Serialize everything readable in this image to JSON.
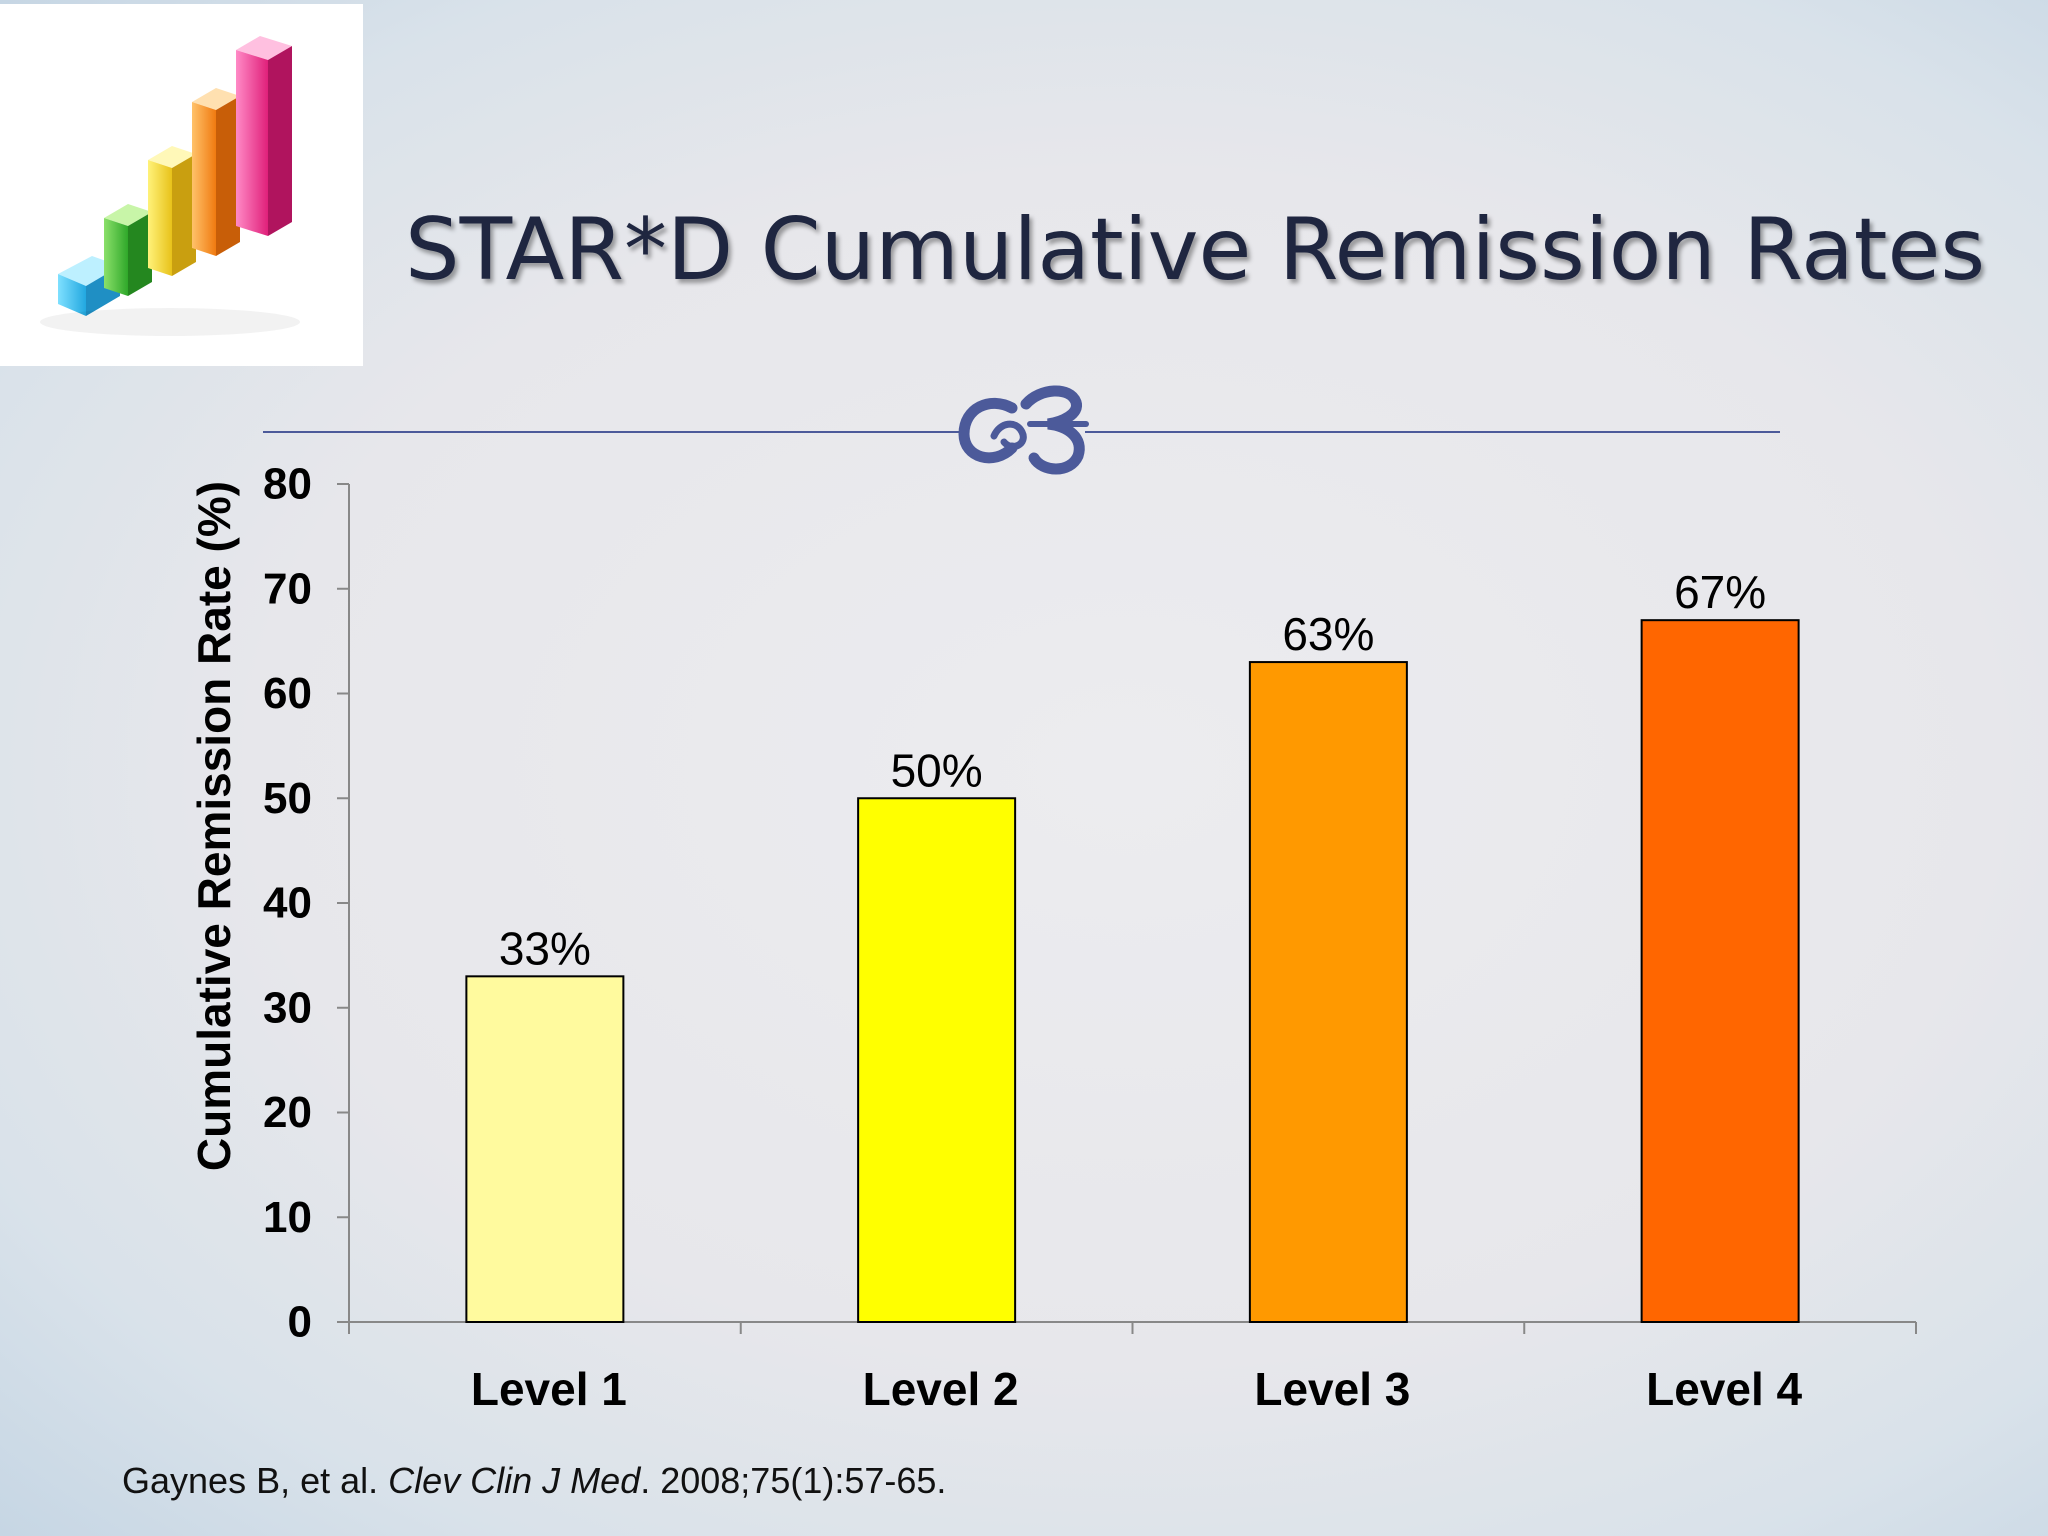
{
  "slide": {
    "title": "STAR*D Cumulative Remission Rates",
    "citation": {
      "authors": "Gaynes B, et al. ",
      "journal": "Clev Clin J Med",
      "details": ". 2008;75(1):57-65."
    }
  },
  "logo": {
    "icon": "bar-chart-graphic"
  },
  "decor": {
    "icon": "flourish-ornament",
    "color": "#4c5a9a"
  },
  "chart_data": {
    "type": "bar",
    "categories": [
      "Level 1",
      "Level 2",
      "Level 3",
      "Level 4"
    ],
    "values": [
      33,
      50,
      63,
      67
    ],
    "data_labels": [
      "33%",
      "50%",
      "63%",
      "67%"
    ],
    "colors": [
      "#fffa9e",
      "#ffff00",
      "#ff9900",
      "#ff6600"
    ],
    "title": "",
    "xlabel": "",
    "ylabel": "Cumulative Remission Rate (%)",
    "ylim": [
      0,
      80
    ],
    "yticks": [
      0,
      10,
      20,
      30,
      40,
      50,
      60,
      70,
      80
    ],
    "grid": false,
    "legend": "none"
  }
}
